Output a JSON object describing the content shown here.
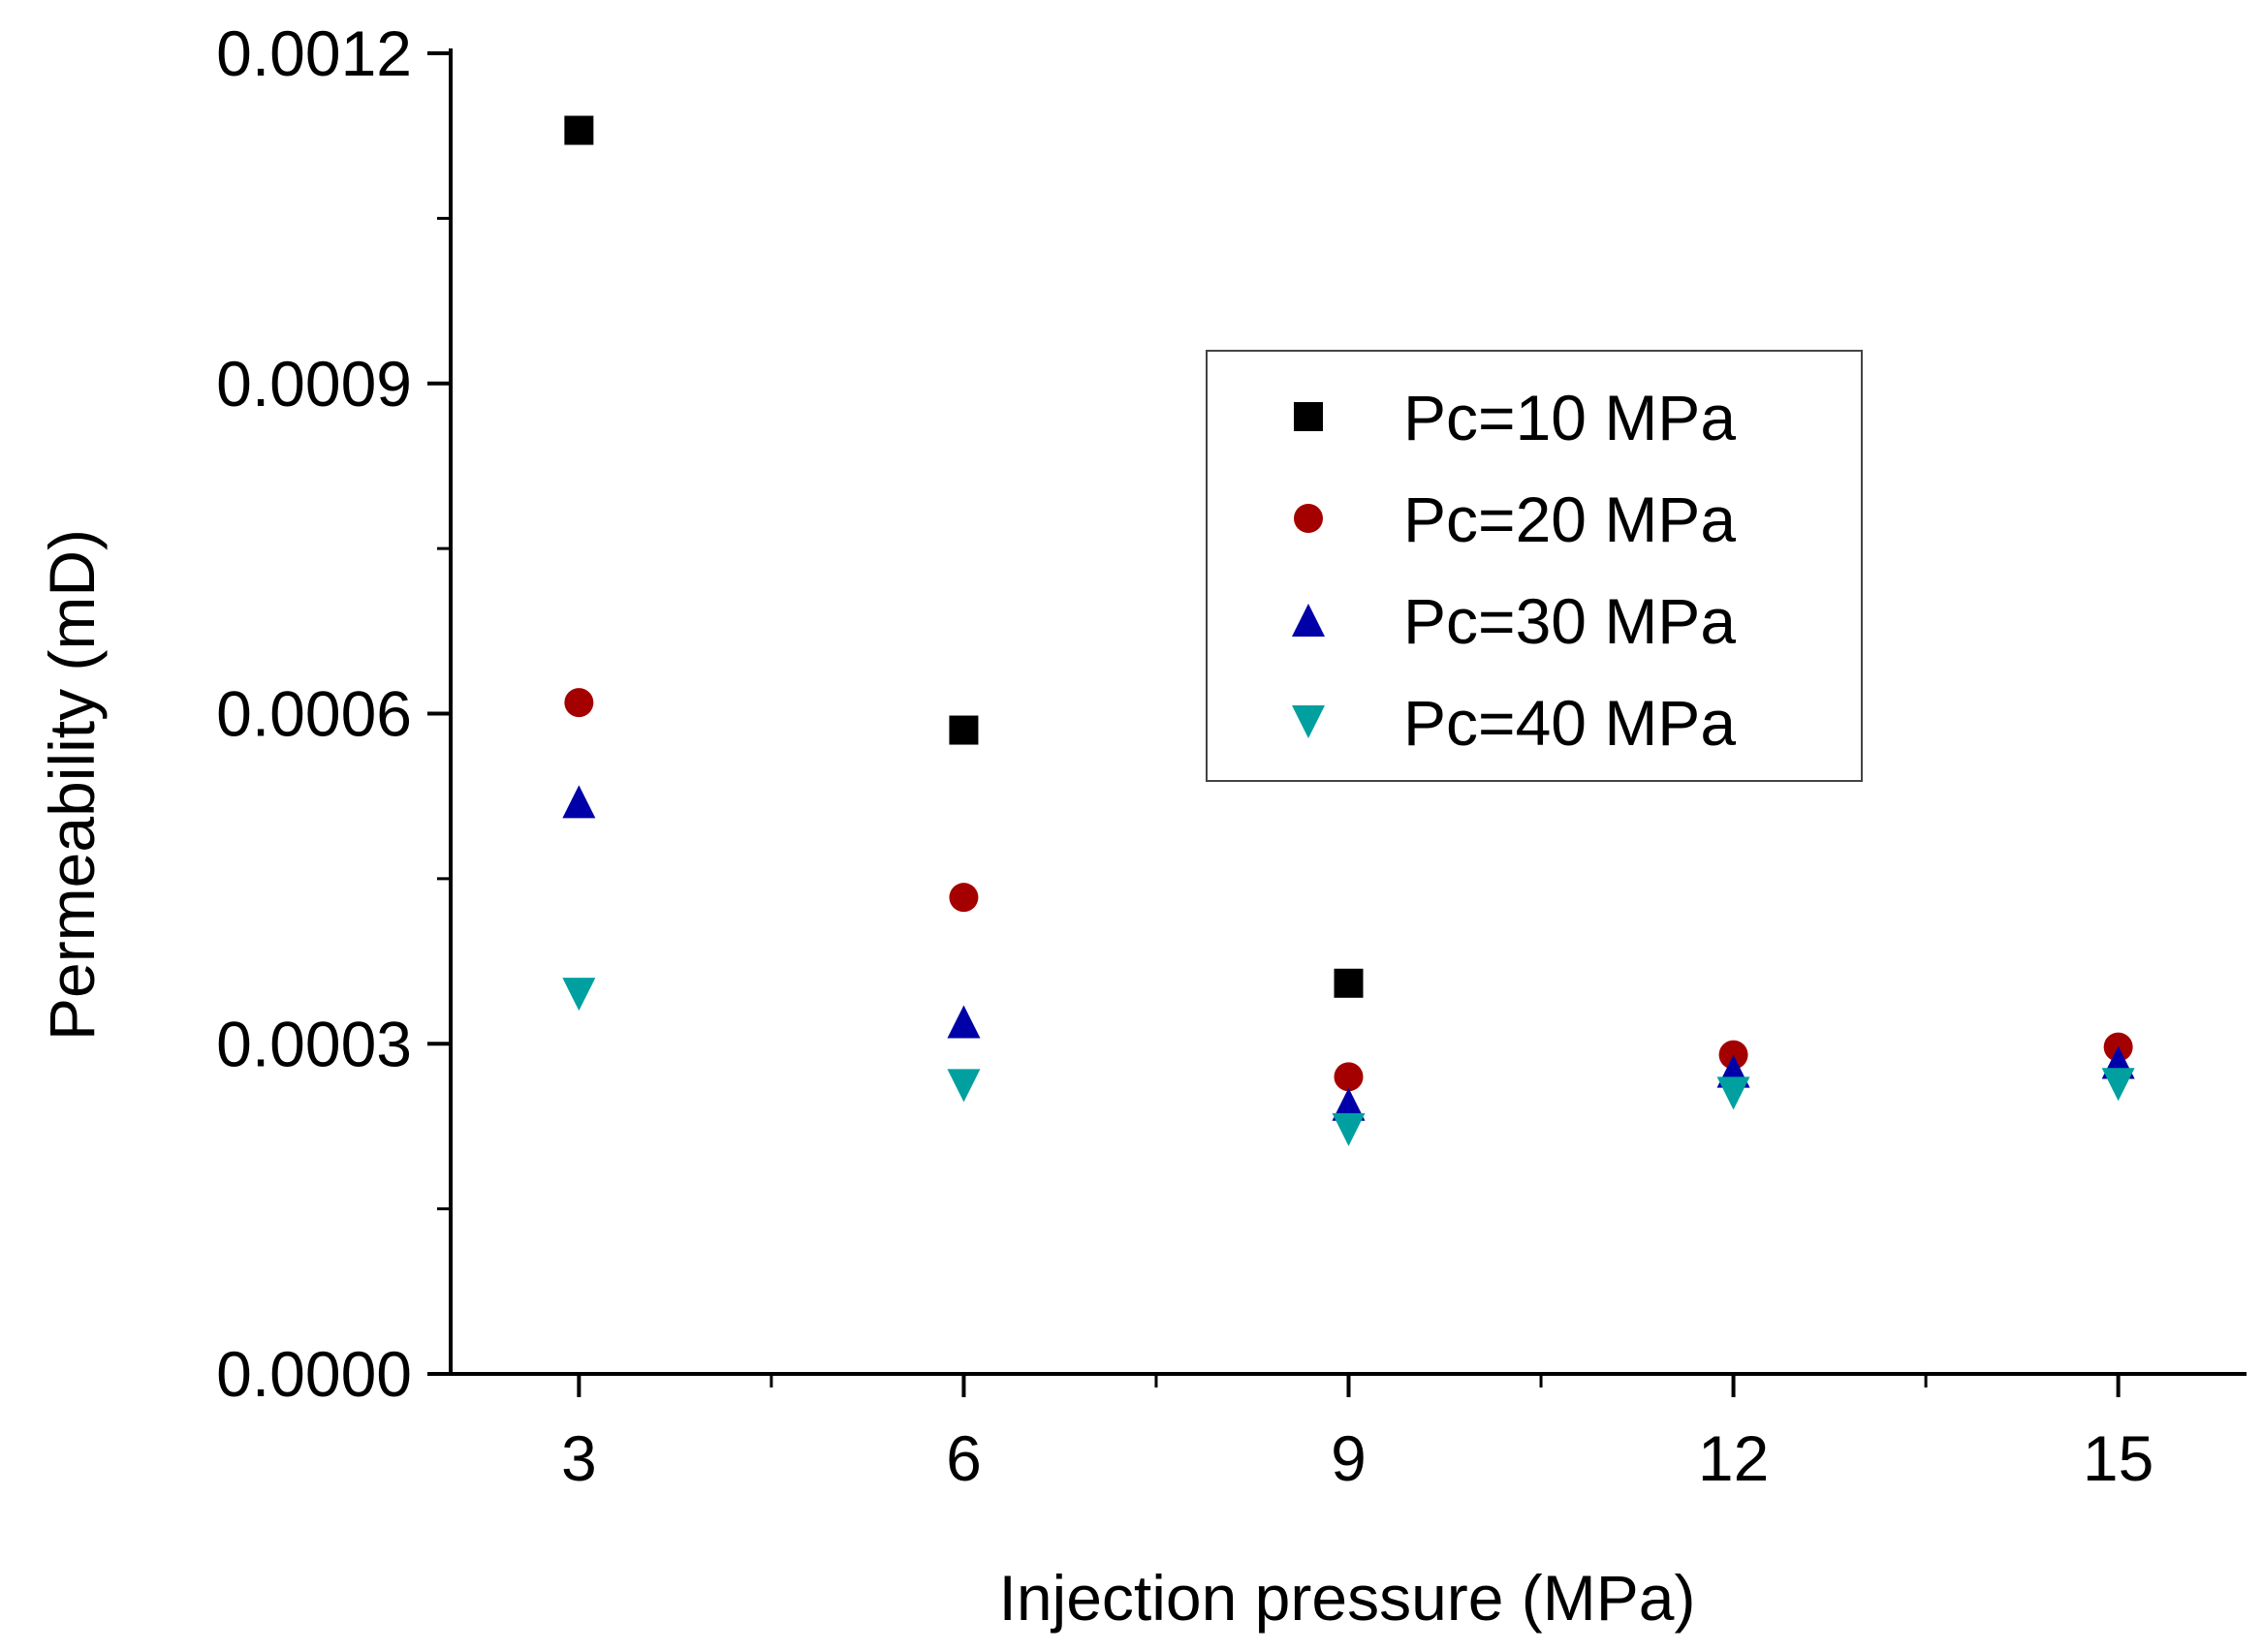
{
  "chart_data": {
    "type": "scatter",
    "title": "",
    "xlabel": "Injection pressure (MPa)",
    "ylabel": "Permeability (mD)",
    "xlim": [
      2,
      16
    ],
    "ylim": [
      0,
      0.0012
    ],
    "x_ticks": [
      3,
      6,
      9,
      12,
      15
    ],
    "x_tick_labels": [
      "3",
      "6",
      "9",
      "12",
      "15"
    ],
    "y_ticks": [
      0,
      0.0003,
      0.0006,
      0.0009,
      0.0012
    ],
    "y_tick_labels": [
      "0.0000",
      "0.0003",
      "0.0006",
      "0.0009",
      "0.0012"
    ],
    "grid": false,
    "legend_position": "upper-right",
    "series": [
      {
        "name": "Pc=10 MPa",
        "marker": "square",
        "color": "#000000",
        "x": [
          3,
          6,
          9
        ],
        "y": [
          0.00113,
          0.000585,
          0.000355
        ]
      },
      {
        "name": "Pc=20 MPa",
        "marker": "circle",
        "color": "#a50000",
        "x": [
          3,
          6,
          9,
          12,
          15
        ],
        "y": [
          0.00061,
          0.000433,
          0.00027,
          0.00029,
          0.000297
        ]
      },
      {
        "name": "Pc=30 MPa",
        "marker": "triangle-up",
        "color": "#0000a8",
        "x": [
          3,
          6,
          9,
          12,
          15
        ],
        "y": [
          0.00052,
          0.00032,
          0.000245,
          0.000275,
          0.000283
        ]
      },
      {
        "name": "Pc=40 MPa",
        "marker": "triangle-down",
        "color": "#00a0a0",
        "x": [
          3,
          6,
          9,
          12,
          15
        ],
        "y": [
          0.000345,
          0.000262,
          0.000222,
          0.000255,
          0.000263
        ]
      }
    ]
  }
}
